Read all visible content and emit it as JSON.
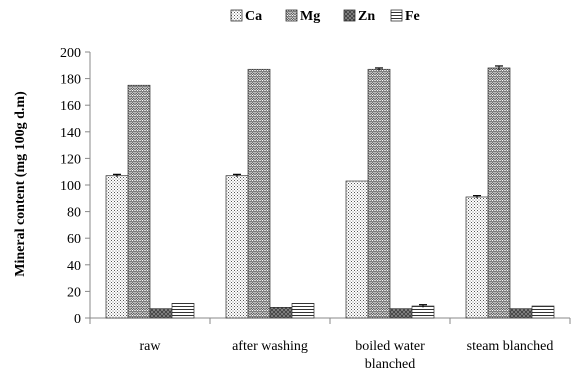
{
  "chart_data": {
    "type": "bar",
    "title": "",
    "xlabel": "",
    "ylabel": "Mineral content (mg 100g d.m)",
    "ylim": [
      0,
      200
    ],
    "yticks": [
      0,
      20,
      40,
      60,
      80,
      100,
      120,
      140,
      160,
      180,
      200
    ],
    "grid": false,
    "legend_position": "top-center",
    "categories": [
      "raw",
      "after washing",
      "boiled water blanched",
      "steam blanched"
    ],
    "category_lines": [
      [
        "raw"
      ],
      [
        "after washing"
      ],
      [
        "boiled water",
        "blanched"
      ],
      [
        "steam blanched"
      ]
    ],
    "series": [
      {
        "name": "Ca",
        "values": [
          107,
          107,
          103,
          91
        ],
        "errors": [
          1,
          1,
          0,
          1
        ],
        "pattern": "dots"
      },
      {
        "name": "Mg",
        "values": [
          175,
          187,
          187,
          188
        ],
        "errors": [
          0,
          0,
          1,
          1.5
        ],
        "pattern": "zigzag"
      },
      {
        "name": "Zn",
        "values": [
          7,
          8,
          7,
          7
        ],
        "errors": [
          0,
          0,
          0,
          0
        ],
        "pattern": "dark"
      },
      {
        "name": "Fe",
        "values": [
          11,
          11,
          9,
          9
        ],
        "errors": [
          0,
          0,
          1,
          0
        ],
        "pattern": "hstripes"
      }
    ]
  }
}
